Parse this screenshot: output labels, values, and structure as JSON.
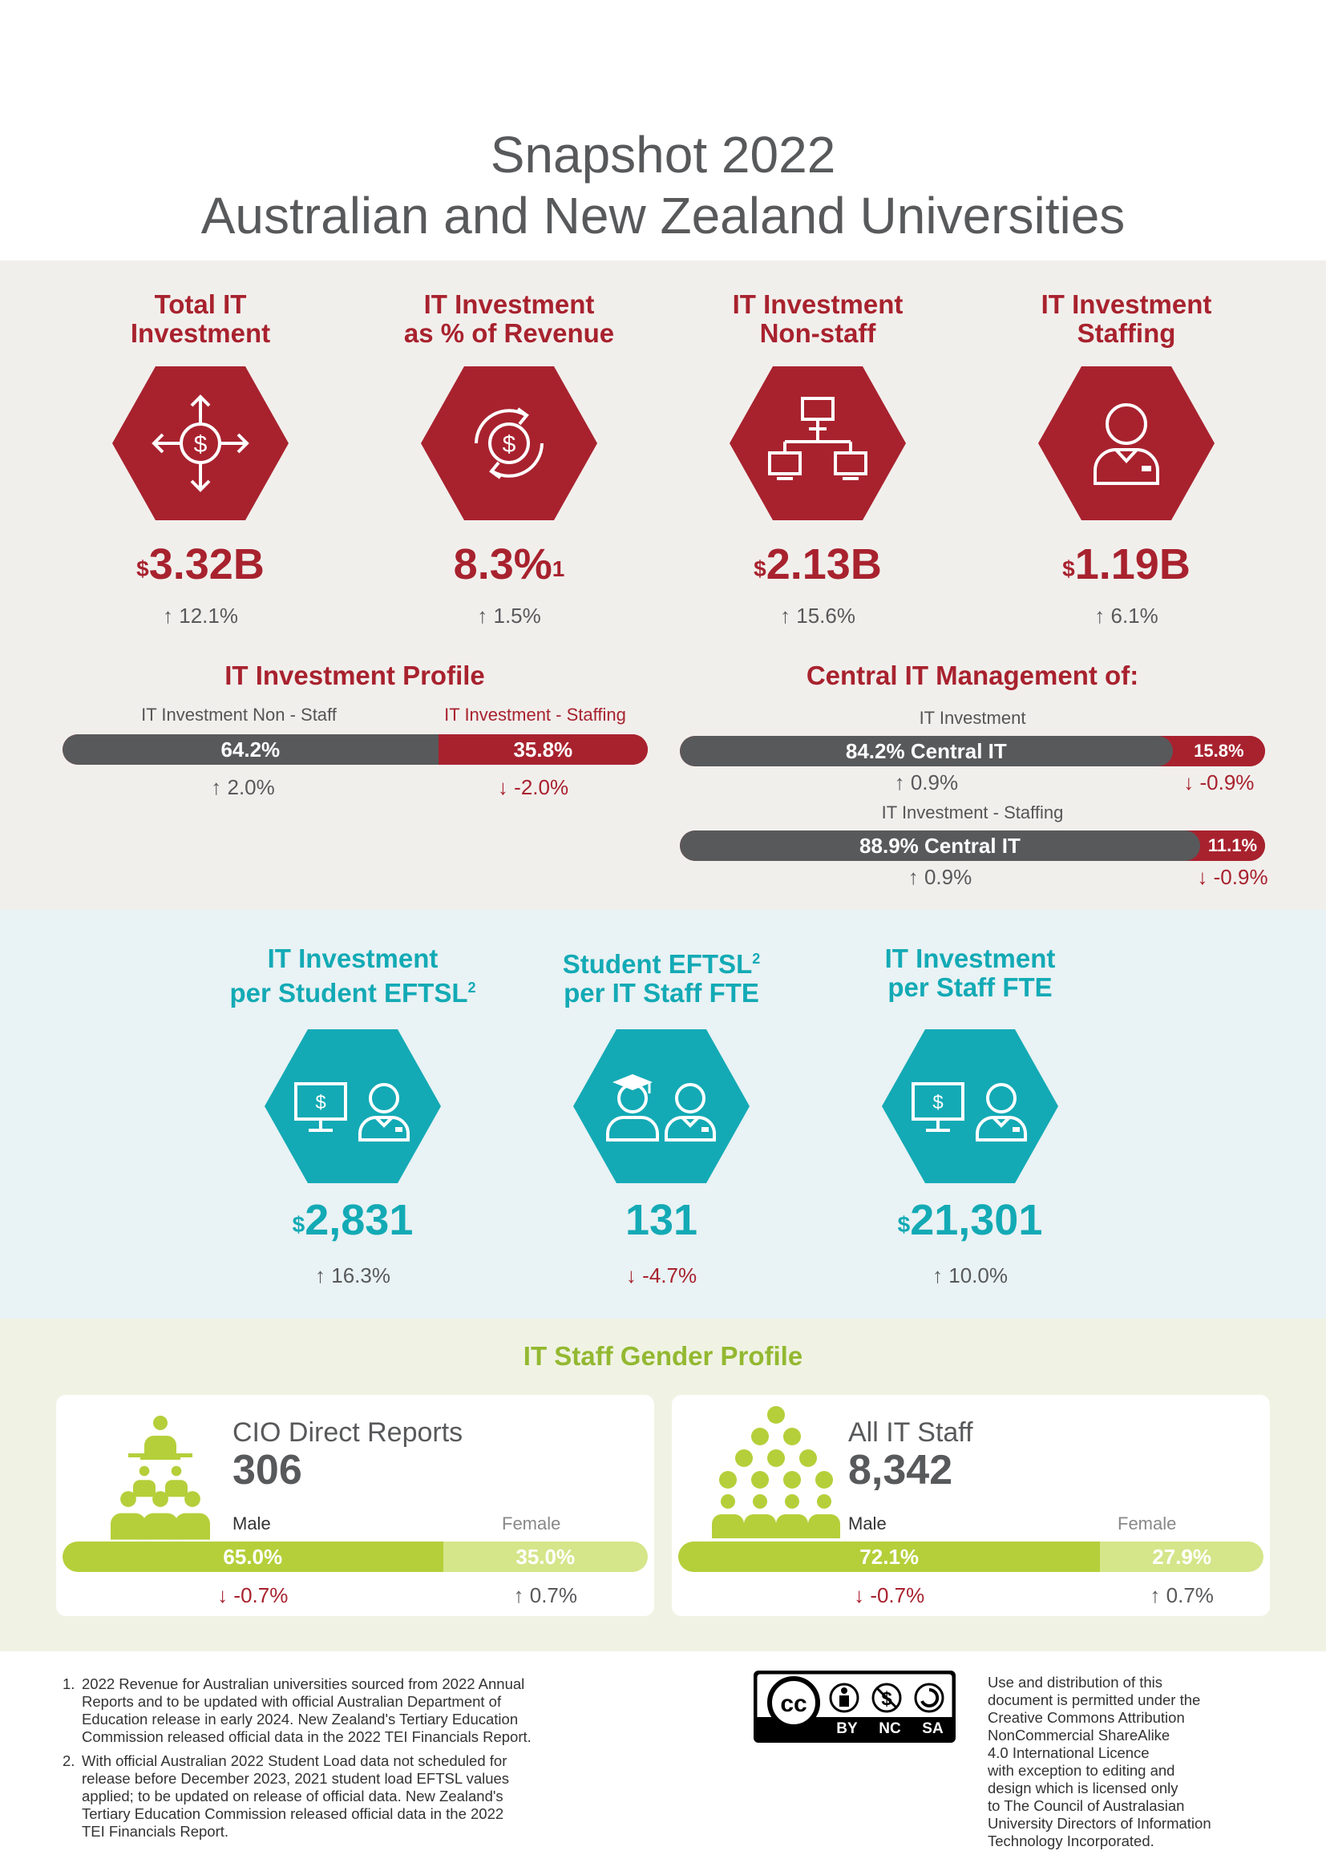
{
  "title": {
    "line1": "Snapshot 2022",
    "line2": "Australian and New Zealand Universities"
  },
  "colors": {
    "red": "#a8222e",
    "teal": "#13aab5",
    "green": "#b5cf3a",
    "grey": "#58595b"
  },
  "kpis": [
    {
      "title1": "Total IT",
      "title2": "Investment",
      "icon": "dollar-arrows-icon",
      "prefix": "$",
      "value": "3.32B",
      "sup": "",
      "change": "12.1%",
      "dir": "up"
    },
    {
      "title1": "IT Investment",
      "title2": "as % of Revenue",
      "icon": "dollar-cycle-icon",
      "prefix": "",
      "value": "8.3%",
      "sup": "1",
      "change": "1.5%",
      "dir": "up"
    },
    {
      "title1": "IT Investment",
      "title2": "Non-staff",
      "icon": "network-computers-icon",
      "prefix": "$",
      "value": "2.13B",
      "sup": "",
      "change": "15.6%",
      "dir": "up"
    },
    {
      "title1": "IT Investment",
      "title2": "Staffing",
      "icon": "staff-person-icon",
      "prefix": "$",
      "value": "1.19B",
      "sup": "",
      "change": "6.1%",
      "dir": "up"
    }
  ],
  "profile": {
    "title": "IT Investment Profile",
    "left_label": "IT Investment Non - Staff",
    "right_label": "IT Investment - Staffing",
    "left_value": "64.2%",
    "right_value": "35.8%",
    "left_fraction": 0.642,
    "left_change": "2.0%",
    "left_dir": "up",
    "right_change": "-2.0%",
    "right_dir": "down"
  },
  "central": {
    "title": "Central IT Management of:",
    "bars": [
      {
        "label": "IT Investment",
        "main": "84.2% Central IT",
        "rest": "15.8%",
        "fraction": 0.842,
        "change_main": "0.9%",
        "dir_main": "up",
        "change_rest": "-0.9%",
        "dir_rest": "down"
      },
      {
        "label": "IT Investment - Staffing",
        "main": "88.9% Central IT",
        "rest": "11.1%",
        "fraction": 0.889,
        "change_main": "0.9%",
        "dir_main": "up",
        "change_rest": "-0.9%",
        "dir_rest": "down"
      }
    ]
  },
  "teal_kpis": [
    {
      "title1": "IT Investment",
      "title2": "per Student EFTSL",
      "title_sup2": "2",
      "icon": "computer-student-icon",
      "prefix": "$",
      "value": "2,831",
      "change": "16.3%",
      "dir": "up"
    },
    {
      "title1": "Student EFTSL",
      "title1_sup": "2",
      "title2": "per IT Staff FTE",
      "icon": "graduate-staff-icon",
      "prefix": "",
      "value": "131",
      "change": "-4.7%",
      "dir": "down"
    },
    {
      "title1": "IT Investment",
      "title2": "per Staff FTE",
      "icon": "computer-staff-icon",
      "prefix": "$",
      "value": "21,301",
      "change": "10.0%",
      "dir": "up"
    }
  ],
  "gender": {
    "title": "IT Staff Gender Profile",
    "cards": [
      {
        "title": "CIO Direct Reports",
        "count": "306",
        "icon": "hierarchy-people-icon",
        "male_label": "Male",
        "female_label": "Female",
        "male": "65.0%",
        "female": "35.0%",
        "male_fraction": 0.65,
        "male_change": "-0.7%",
        "male_dir": "down",
        "female_change": "0.7%",
        "female_dir": "up"
      },
      {
        "title": "All IT Staff",
        "count": "8,342",
        "icon": "people-pyramid-icon",
        "male_label": "Male",
        "female_label": "Female",
        "male": "72.1%",
        "female": "27.9%",
        "male_fraction": 0.721,
        "male_change": "-0.7%",
        "male_dir": "down",
        "female_change": "0.7%",
        "female_dir": "up"
      }
    ]
  },
  "footnotes": [
    {
      "num": "1.",
      "lines": [
        "2022 Revenue for Australian universities sourced from 2022 Annual",
        "Reports and to be updated with official Australian Department of",
        "Education release in early 2024. New Zealand's Tertiary Education",
        "Commission released official data in the 2022 TEI Financials Report."
      ]
    },
    {
      "num": "2.",
      "lines": [
        "With official Australian 2022 Student Load data not scheduled for",
        "release before December 2023, 2021 student load EFTSL values",
        "applied; to be updated on release of official data. New Zealand's",
        "Tertiary Education Commission released official data in the 2022",
        "TEI Financials Report."
      ]
    }
  ],
  "license": {
    "badge": [
      "BY",
      "NC",
      "SA"
    ],
    "lines": [
      "Use and distribution of this",
      "document is permitted under the",
      "Creative Commons Attribution",
      "NonCommercial ShareAlike",
      "4.0 International Licence",
      "with exception to editing and",
      "design which is licensed only",
      "to The Council of Australasian",
      "University Directors of Information",
      "Technology Incorporated."
    ]
  }
}
